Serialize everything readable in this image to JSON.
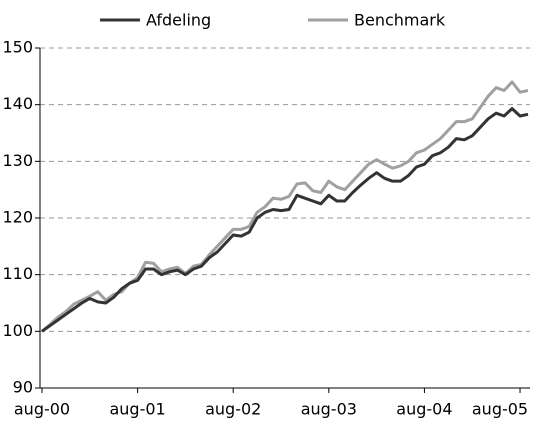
{
  "chart_data": {
    "type": "line",
    "categories": [
      "aug-00",
      null,
      null,
      null,
      null,
      null,
      null,
      null,
      null,
      null,
      null,
      null,
      "aug-01",
      null,
      null,
      null,
      null,
      null,
      null,
      null,
      null,
      null,
      null,
      null,
      "aug-02",
      null,
      null,
      null,
      null,
      null,
      null,
      null,
      null,
      null,
      null,
      null,
      "aug-03",
      null,
      null,
      null,
      null,
      null,
      null,
      null,
      null,
      null,
      null,
      null,
      "aug-04",
      null,
      null,
      null,
      null,
      null,
      null,
      null,
      null,
      null,
      null,
      null,
      "aug-05",
      null
    ],
    "series": [
      {
        "name": "Afdeling",
        "color": "#333333",
        "values": [
          100,
          101,
          102,
          103,
          104,
          105,
          105.8,
          105.2,
          105,
          106,
          107.5,
          108.5,
          109,
          111,
          111,
          110,
          110.5,
          110.8,
          110,
          111,
          111.5,
          113,
          114,
          115.5,
          117,
          116.8,
          117.5,
          120,
          121,
          121.5,
          121.3,
          121.5,
          124,
          123.5,
          123,
          122.5,
          124,
          123,
          123,
          124.5,
          125.8,
          127,
          128,
          127,
          126.5,
          126.5,
          127.5,
          129,
          129.5,
          131,
          131.5,
          132.5,
          134,
          133.8,
          134.5,
          136,
          137.5,
          138.5,
          138,
          139.3,
          138,
          138.3
        ]
      },
      {
        "name": "Benchmark",
        "color": "#a0a0a0",
        "values": [
          100,
          101.2,
          102.5,
          103.5,
          104.8,
          105.5,
          106.2,
          107,
          105.5,
          106.5,
          107,
          108.5,
          109.5,
          112.2,
          112,
          110.5,
          111,
          111.3,
          110.2,
          111.5,
          111.8,
          113.5,
          115,
          116.5,
          118,
          118,
          118.5,
          121,
          122,
          123.5,
          123.3,
          123.8,
          126,
          126.2,
          124.8,
          124.5,
          126.5,
          125.5,
          125,
          126.5,
          128,
          129.5,
          130.3,
          129.5,
          128.8,
          129.2,
          130,
          131.5,
          132,
          133,
          134,
          135.5,
          137,
          137,
          137.5,
          139.5,
          141.5,
          143,
          142.5,
          144,
          142.2,
          142.5
        ]
      }
    ],
    "ylim": [
      90,
      150
    ],
    "yticks": [
      90,
      100,
      110,
      120,
      130,
      140,
      150
    ],
    "grid": true
  }
}
